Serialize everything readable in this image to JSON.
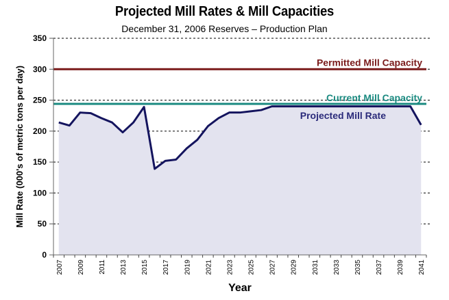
{
  "chart_data": {
    "type": "area",
    "title": "Projected Mill Rates & Mill Capacities",
    "subtitle": "December 31, 2006 Reserves – Production Plan",
    "xlabel": "Year",
    "ylabel": "Mill Rate (000's of metric tons per day)",
    "ylim": [
      0,
      350
    ],
    "yticks": [
      0,
      50,
      100,
      150,
      200,
      250,
      300,
      350
    ],
    "grid": "horizontal-dashed",
    "x": [
      2007,
      2008,
      2009,
      2010,
      2011,
      2012,
      2013,
      2014,
      2015,
      2016,
      2017,
      2018,
      2019,
      2020,
      2021,
      2022,
      2023,
      2024,
      2025,
      2026,
      2027,
      2028,
      2029,
      2030,
      2031,
      2032,
      2033,
      2034,
      2035,
      2036,
      2037,
      2038,
      2039,
      2040,
      2041
    ],
    "xtick_labels": [
      "2007",
      "2009",
      "2011",
      "2013",
      "2015",
      "2017",
      "2019",
      "2021",
      "2023",
      "2025",
      "2027",
      "2029",
      "2031",
      "2033",
      "2035",
      "2037",
      "2039",
      "2041"
    ],
    "series": [
      {
        "name": "Projected Mill Rate",
        "kind": "area-line",
        "color": "#14145e",
        "fill": "#e3e3ef",
        "values": [
          214,
          209,
          230,
          229,
          221,
          214,
          198,
          214,
          239,
          139,
          152,
          154,
          172,
          186,
          208,
          221,
          230,
          230,
          232,
          234,
          240,
          240,
          240,
          240,
          240,
          240,
          240,
          240,
          240,
          240,
          240,
          240,
          240,
          240,
          210
        ]
      },
      {
        "name": "Current Mill Capacity",
        "kind": "constant-line",
        "color": "#1a8a80",
        "value": 244
      },
      {
        "name": "Permitted Mill Capacity",
        "kind": "constant-line",
        "color": "#7a1a1a",
        "value": 300
      }
    ],
    "annotations": [
      {
        "text": "Permitted Mill Capacity",
        "color": "#7a1a1a",
        "anchor_value": 300,
        "position": "above-line-right"
      },
      {
        "text": "Current Mill Capacity",
        "color": "#1a8a80",
        "anchor_value": 244,
        "position": "above-line-right"
      },
      {
        "text": "Projected Mill Rate",
        "color": "#2a2a7a",
        "anchor_value": 244,
        "position": "below-line-right"
      }
    ]
  }
}
